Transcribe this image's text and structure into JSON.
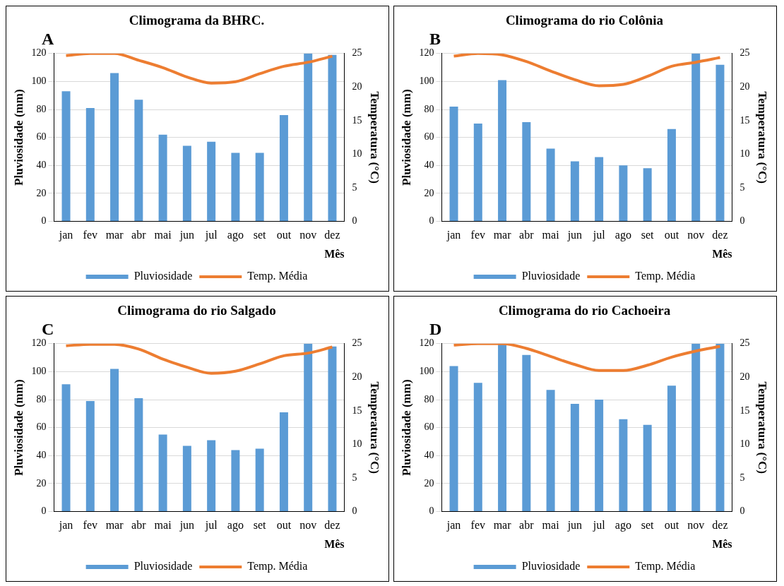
{
  "chart_data": [
    {
      "type": "bar",
      "title": "Climograma da BHRC.",
      "annotations": [
        "A"
      ],
      "categories": [
        "jan",
        "fev",
        "mar",
        "abr",
        "mai",
        "jun",
        "jul",
        "ago",
        "set",
        "out",
        "nov",
        "dez"
      ],
      "xlabel": "Mês",
      "ylabel": "Pluviosidade (mm)",
      "y2label": "Temperatura (°C)",
      "ylim": [
        0,
        120
      ],
      "yticks": [
        0,
        20,
        40,
        60,
        80,
        100,
        120
      ],
      "y2lim": [
        0,
        25
      ],
      "y2ticks": [
        0,
        5,
        10,
        15,
        20,
        25
      ],
      "grid": "y",
      "legend": "bottom",
      "series": [
        {
          "name": "Pluviosidade",
          "color": "#5b9bd5",
          "values": [
            93,
            81,
            106,
            87,
            62,
            54,
            57,
            49,
            49,
            76,
            120,
            119
          ]
        },
        {
          "name": "Temp. Média",
          "type": "line",
          "axis": "y2",
          "color": "#ed7d31",
          "values": [
            24.7,
            25,
            25,
            24,
            22.9,
            21.5,
            20.6,
            20.8,
            22,
            23.1,
            23.7,
            24.6
          ]
        }
      ]
    },
    {
      "type": "bar",
      "title": "Climograma do rio Colônia",
      "annotations": [
        "B"
      ],
      "categories": [
        "jan",
        "fev",
        "mar",
        "abr",
        "mai",
        "jun",
        "jul",
        "ago",
        "set",
        "out",
        "nov",
        "dez"
      ],
      "xlabel": "Mês",
      "ylabel": "Pluviosidade (mm)",
      "y2label": "Temperatura (°C)",
      "ylim": [
        0,
        120
      ],
      "yticks": [
        0,
        20,
        40,
        60,
        80,
        100,
        120
      ],
      "y2lim": [
        0,
        25
      ],
      "y2ticks": [
        0,
        5,
        10,
        15,
        20,
        25
      ],
      "grid": "y",
      "legend": "bottom",
      "series": [
        {
          "name": "Pluviosidade",
          "color": "#5b9bd5",
          "values": [
            82,
            70,
            101,
            71,
            52,
            43,
            46,
            40,
            38,
            66,
            120,
            112
          ]
        },
        {
          "name": "Temp. Média",
          "type": "line",
          "axis": "y2",
          "color": "#ed7d31",
          "values": [
            24.6,
            25,
            24.8,
            23.8,
            22.4,
            21.1,
            20.2,
            20.4,
            21.6,
            23.1,
            23.7,
            24.4
          ]
        }
      ]
    },
    {
      "type": "bar",
      "title": "Climograma do rio Salgado",
      "annotations": [
        "C"
      ],
      "categories": [
        "jan",
        "fev",
        "mar",
        "abr",
        "mai",
        "jun",
        "jul",
        "ago",
        "set",
        "out",
        "nov",
        "dez"
      ],
      "xlabel": "Mês",
      "ylabel": "Pluviosidade (mm)",
      "y2label": "Temperatura (°C)",
      "ylim": [
        0,
        120
      ],
      "yticks": [
        0,
        20,
        40,
        60,
        80,
        100,
        120
      ],
      "y2lim": [
        0,
        25
      ],
      "y2ticks": [
        0,
        5,
        10,
        15,
        20,
        25
      ],
      "grid": "y",
      "legend": "bottom",
      "series": [
        {
          "name": "Pluviosidade",
          "color": "#5b9bd5",
          "values": [
            91,
            79,
            102,
            81,
            55,
            47,
            51,
            44,
            45,
            71,
            120,
            118
          ]
        },
        {
          "name": "Temp. Média",
          "type": "line",
          "axis": "y2",
          "color": "#ed7d31",
          "values": [
            24.7,
            24.9,
            24.9,
            24.2,
            22.7,
            21.5,
            20.6,
            20.9,
            22,
            23.2,
            23.6,
            24.5
          ]
        }
      ]
    },
    {
      "type": "bar",
      "title": "Climograma do rio Cachoeira",
      "annotations": [
        "D"
      ],
      "categories": [
        "jan",
        "fev",
        "mar",
        "abr",
        "mai",
        "jun",
        "jul",
        "ago",
        "set",
        "out",
        "nov",
        "dez"
      ],
      "xlabel": "Mês",
      "ylabel": "Pluviosidade (mm)",
      "y2label": "Temperatura (°C)",
      "ylim": [
        0,
        120
      ],
      "yticks": [
        0,
        20,
        40,
        60,
        80,
        100,
        120
      ],
      "y2lim": [
        0,
        25
      ],
      "y2ticks": [
        0,
        5,
        10,
        15,
        20,
        25
      ],
      "grid": "y",
      "legend": "bottom",
      "series": [
        {
          "name": "Pluviosidade",
          "color": "#5b9bd5",
          "values": [
            104,
            92,
            120,
            112,
            87,
            77,
            80,
            66,
            62,
            90,
            120,
            120
          ]
        },
        {
          "name": "Temp. Média",
          "type": "line",
          "axis": "y2",
          "color": "#ed7d31",
          "values": [
            24.8,
            25,
            25,
            24.3,
            23.1,
            21.9,
            21,
            21,
            21.8,
            23,
            23.9,
            24.6
          ]
        }
      ]
    }
  ]
}
